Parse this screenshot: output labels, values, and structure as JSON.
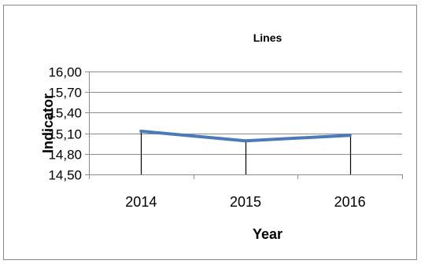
{
  "chart_data": {
    "type": "line",
    "title": "Lines",
    "xlabel": "Year",
    "ylabel": "Indicator",
    "categories": [
      "2014",
      "2015",
      "2016"
    ],
    "series": [
      {
        "values": [
          15.13,
          14.99,
          15.07
        ]
      }
    ],
    "ylim": [
      14.5,
      16.0
    ],
    "yticks": [
      "14,50",
      "14,80",
      "15,10",
      "15,40",
      "15,70",
      "16,00"
    ],
    "grid": true,
    "drop_lines": true,
    "colors": {
      "line": "#4a7ab8",
      "grid": "#8c8c8c",
      "axis": "#8c8c8c",
      "border": "#888888",
      "drop": "#000000"
    }
  }
}
